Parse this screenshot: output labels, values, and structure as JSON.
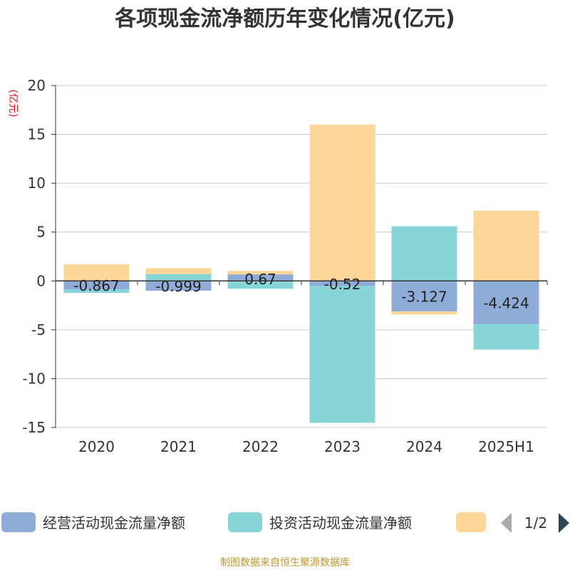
{
  "title": "各项现金流净额历年变化情况(亿元)",
  "unit": "(亿元)",
  "source": "制图数据来自恒生聚源数据库",
  "legend": {
    "page_label": "1/2"
  },
  "colors": {
    "series1": "#8facd8",
    "series2": "#88d5d8",
    "series3": "#fdd698",
    "axis": "#333333",
    "grid": "#c8c8c8",
    "unit": "#e8141b",
    "source": "#c3962f",
    "nav_inactive": "#aaaaaa",
    "nav_active": "#2f4554"
  },
  "chart_data": {
    "type": "bar",
    "stacked": true,
    "categories": [
      "2020",
      "2021",
      "2022",
      "2023",
      "2024",
      "2025H1"
    ],
    "series": [
      {
        "name": "经营活动现金流量净额",
        "values": [
          -0.867,
          -0.999,
          0.67,
          -0.52,
          -3.127,
          -4.424
        ],
        "labels": [
          "-0.867",
          "-0.999",
          "0.67",
          "-0.52",
          "-3.127",
          "-4.424"
        ]
      },
      {
        "name": "投资活动现金流量净额",
        "values": [
          -0.35,
          0.7,
          -0.8,
          -14.0,
          5.6,
          -2.6
        ]
      },
      {
        "name": "",
        "values": [
          1.7,
          0.6,
          0.35,
          16.0,
          -0.3,
          7.2
        ]
      }
    ],
    "yticks": [
      "20",
      "15",
      "10",
      "5",
      "0",
      "-5",
      "-10",
      "-15"
    ],
    "ylim": [
      -15,
      20
    ],
    "grid": true,
    "legend_position": "bottom"
  }
}
